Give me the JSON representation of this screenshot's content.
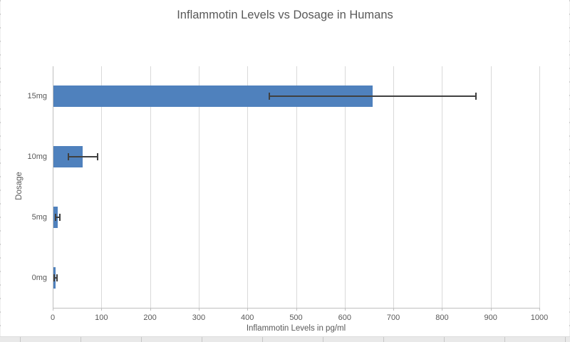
{
  "chart": {
    "title": "Inflammotin Levels vs Dosage in Humans",
    "x_axis_title": "Inflammotin Levels in pg/ml",
    "y_axis_title": "Dosage"
  },
  "chart_data": {
    "type": "bar",
    "orientation": "horizontal",
    "title": "Inflammotin Levels vs Dosage in Humans",
    "xlabel": "Inflammotin Levels in pg/ml",
    "ylabel": "Dosage",
    "categories": [
      "15mg",
      "10mg",
      "5mg",
      "0mg"
    ],
    "values": [
      657,
      62,
      10,
      6
    ],
    "error_bars": [
      212,
      30,
      4,
      3
    ],
    "xlim": [
      0,
      1000
    ],
    "x_ticks": [
      0,
      100,
      200,
      300,
      400,
      500,
      600,
      700,
      800,
      900,
      1000
    ],
    "grid": true,
    "legend": "none",
    "bar_color": "#4f81bd",
    "error_color": "#404040",
    "text_color": "#595959",
    "gridline_color": "#d9d9d9"
  }
}
